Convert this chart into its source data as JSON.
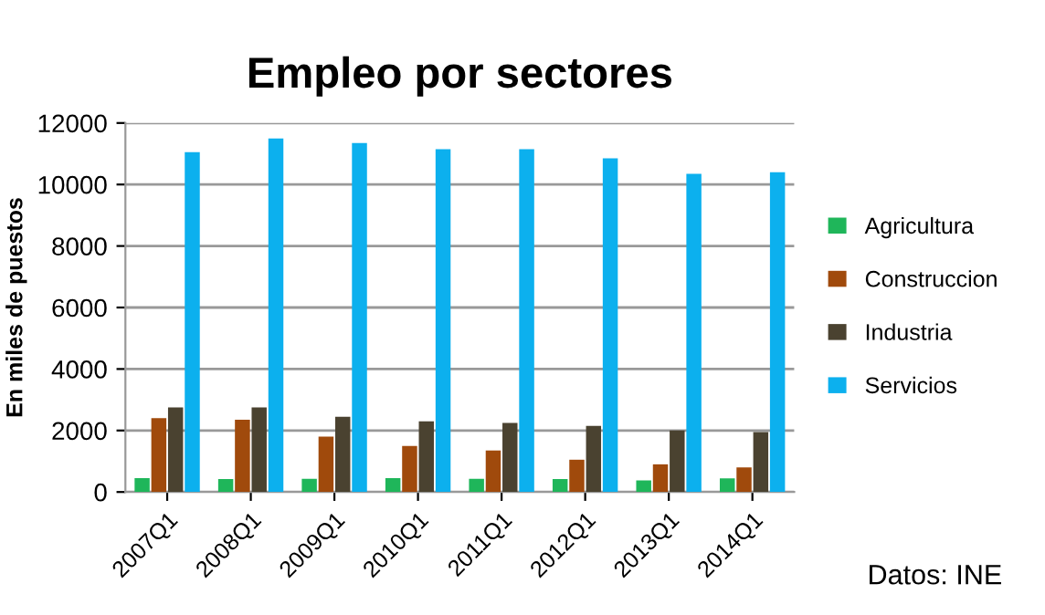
{
  "chart_data": {
    "type": "bar",
    "title": "Empleo por sectores",
    "ylabel": "En miles de puestos",
    "categories": [
      "2007Q1",
      "2008Q1",
      "2009Q1",
      "2010Q1",
      "2011Q1",
      "2012Q1",
      "2013Q1",
      "2014Q1"
    ],
    "series": [
      {
        "name": "Agricultura",
        "color": "#1fb65a",
        "values": [
          450,
          420,
          430,
          450,
          430,
          420,
          380,
          440
        ]
      },
      {
        "name": "Construccion",
        "color": "#a04a0c",
        "values": [
          2400,
          2350,
          1800,
          1500,
          1350,
          1050,
          900,
          800
        ]
      },
      {
        "name": "Industria",
        "color": "#4a4230",
        "values": [
          2750,
          2750,
          2450,
          2300,
          2250,
          2150,
          2000,
          1950
        ]
      },
      {
        "name": "Servicios",
        "color": "#0cb0ee",
        "values": [
          11050,
          11500,
          11350,
          11150,
          11150,
          10850,
          10350,
          10400
        ]
      }
    ],
    "ylim": [
      0,
      12000
    ],
    "yticks": [
      0,
      2000,
      4000,
      6000,
      8000,
      10000,
      12000
    ],
    "grid": "y",
    "legend": "right",
    "annotations": [
      "Datos: INE"
    ]
  }
}
